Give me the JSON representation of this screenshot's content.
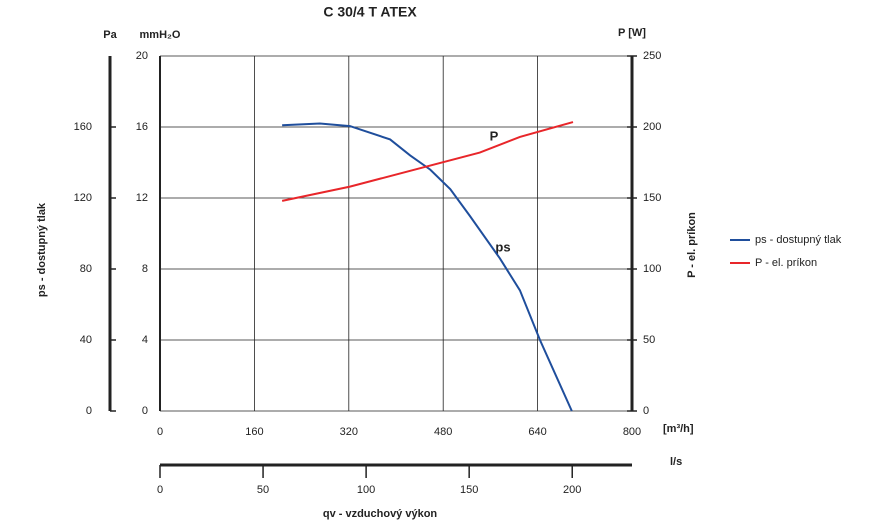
{
  "chart_data": {
    "type": "line",
    "title": "C 30/4 T ATEX",
    "x_unit": "[m³/h]",
    "xlim": [
      0,
      800
    ],
    "xticks": [
      0,
      160,
      320,
      480,
      640,
      800
    ],
    "x2_unit": "l/s",
    "x2lim": [
      0,
      229
    ],
    "x2ticks": [
      0,
      50,
      100,
      150,
      200
    ],
    "x_label": "qv - vzduchový výkon",
    "y_unit": "mmH₂O",
    "ylim": [
      0,
      20
    ],
    "yticks": [
      0,
      4,
      8,
      12,
      16,
      20
    ],
    "y3_unit": "Pa",
    "y3lim": [
      0,
      200
    ],
    "y3ticks": [
      0,
      40,
      80,
      120,
      160
    ],
    "y_label": "ps - dostupný tlak",
    "y2_unit": "P [W]",
    "y2lim": [
      0,
      250
    ],
    "y2ticks": [
      0,
      50,
      100,
      150,
      200,
      250
    ],
    "y2_label": "P - el. príkon",
    "grid": true,
    "legend": "right",
    "annotations": [
      "P",
      "ps"
    ],
    "series": [
      {
        "name": "ps - dostupný tlak",
        "color": "#1f4e9c",
        "x": [
          207,
          271,
          322,
          390,
          424,
          458,
          492,
          525,
          576,
          610,
          644,
          698
        ],
        "values": [
          16.1,
          16.2,
          16.05,
          15.3,
          14.4,
          13.6,
          12.5,
          11.0,
          8.6,
          6.8,
          4.0,
          0
        ]
      },
      {
        "name": "P - el. príkon",
        "color": "#e8262a",
        "axis": "y2",
        "x": [
          207,
          322,
          441,
          542,
          610,
          700
        ],
        "values": [
          148,
          158,
          171,
          182,
          193,
          203.5
        ]
      }
    ]
  }
}
